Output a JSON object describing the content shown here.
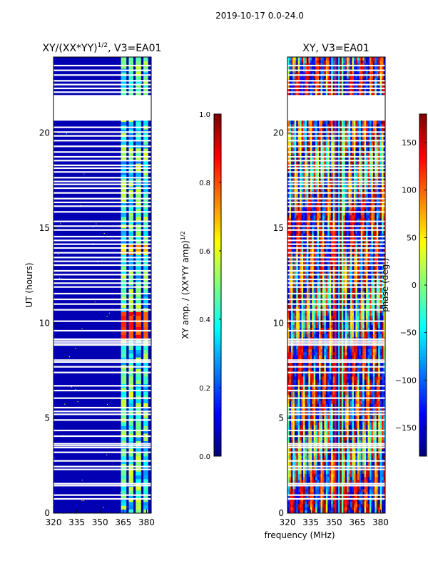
{
  "figure": {
    "suptitle": "2019-10-17 0.0-24.0",
    "xlabel": "frequency (MHz)"
  },
  "colors": {
    "jet": [
      "#00007f",
      "#0000ff",
      "#007fff",
      "#00ffff",
      "#7fff7f",
      "#ffff00",
      "#ff7f00",
      "#ff0000",
      "#7f0000"
    ],
    "background": "#ffffff",
    "gap": "#ffffff"
  },
  "chart_data": [
    {
      "type": "heatmap",
      "name": "amplitude-panel",
      "title_main": "XY/(XX*YY)",
      "title_sup": "1/2",
      "title_tail": ", V3=EA01",
      "xlim": [
        320,
        383
      ],
      "ylim": [
        0,
        24
      ],
      "xticks": [
        320,
        335,
        350,
        365,
        380
      ],
      "yticks": [
        0,
        5,
        10,
        15,
        20
      ],
      "ylabel": "UT (hours)",
      "dominant_value": 0.05,
      "blank_hours": [
        [
          20.65,
          22.0
        ]
      ],
      "bright_channels_mhz": [
        [
          363.5,
          367.0
        ],
        [
          368.5,
          371.5
        ],
        [
          373.0,
          376.5
        ],
        [
          378.0,
          381.0
        ]
      ],
      "hot_blocks": [
        {
          "t0": 9.3,
          "t1": 10.5,
          "value": 0.9
        },
        {
          "t0": 13.6,
          "t1": 14.2,
          "value": 0.75
        },
        {
          "t0": 6.8,
          "t1": 7.4,
          "value": 0.55
        },
        {
          "t0": 18.6,
          "t1": 19.1,
          "value": 0.6
        }
      ],
      "colorbar": {
        "label_main": "XY amp. / (XX*YY amp)",
        "label_sup": "1/2",
        "range": [
          0.0,
          1.0
        ],
        "ticks": [
          "0.0",
          "0.2",
          "0.4",
          "0.6",
          "0.8",
          "1.0"
        ],
        "tick_values": [
          0.0,
          0.2,
          0.4,
          0.6,
          0.8,
          1.0
        ]
      }
    },
    {
      "type": "heatmap",
      "name": "phase-panel",
      "title": "XY, V3=EA01",
      "xlim": [
        320,
        383
      ],
      "ylim": [
        0,
        24
      ],
      "xticks": [
        320,
        335,
        350,
        365,
        380
      ],
      "yticks": [
        0,
        5,
        10,
        15,
        20
      ],
      "value_range": [
        -180,
        180
      ],
      "blank_hours": [
        [
          20.65,
          22.0
        ]
      ],
      "colorbar": {
        "label": "phase (deg.)",
        "range": [
          -180,
          180
        ],
        "ticks": [
          "−150",
          "−100",
          "−50",
          "0",
          "50",
          "100",
          "150"
        ],
        "tick_values": [
          -150,
          -100,
          -50,
          0,
          50,
          100,
          150
        ]
      }
    }
  ],
  "gap_hours": [
    0.75,
    0.95,
    1.45,
    1.55,
    2.3,
    2.45,
    2.75,
    3.2,
    3.45,
    3.55,
    3.65,
    4.05,
    4.35,
    4.9,
    5.2,
    5.35,
    5.55,
    6.05,
    6.45,
    6.7,
    7.4,
    7.7,
    7.95,
    8.05,
    8.85,
    8.95,
    9.05,
    9.15,
    9.6,
    10.1,
    10.7,
    11.0,
    11.25,
    11.55,
    11.9,
    12.1,
    12.3,
    12.55,
    12.75,
    13.05,
    13.25,
    13.45,
    13.7,
    13.95,
    14.15,
    14.35,
    14.55,
    14.9,
    15.1,
    15.35,
    15.85,
    16.15,
    16.35,
    16.55,
    16.85,
    17.1,
    17.3,
    17.45,
    17.65,
    17.95,
    18.15,
    18.3,
    18.55,
    18.75,
    19.0,
    19.3,
    19.6,
    19.85,
    20.05,
    20.3,
    22.15,
    22.35,
    22.55,
    22.75,
    23.05,
    23.3,
    23.55
  ]
}
